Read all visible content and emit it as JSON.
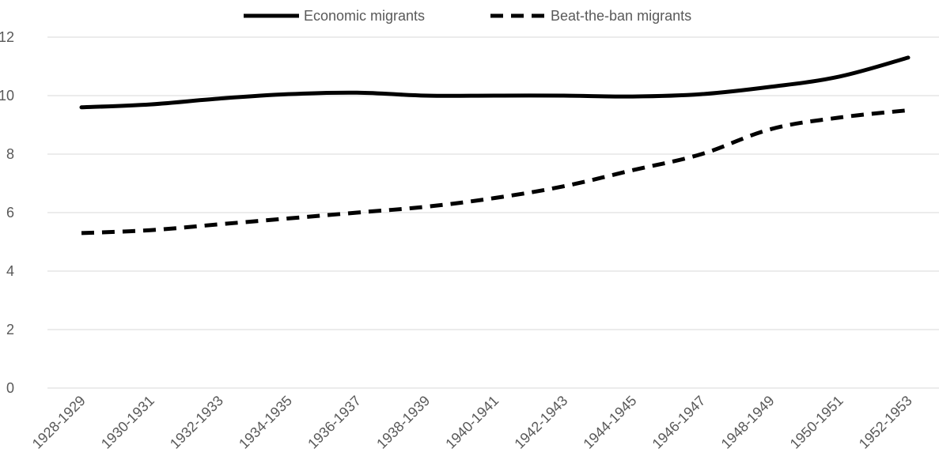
{
  "chart_data": {
    "type": "line",
    "title": "",
    "xlabel": "",
    "ylabel": "",
    "categories": [
      "1928-1929",
      "1930-1931",
      "1932-1933",
      "1934-1935",
      "1936-1937",
      "1938-1939",
      "1940-1941",
      "1942-1943",
      "1944-1945",
      "1946-1947",
      "1948-1949",
      "1950-1951",
      "1952-1953"
    ],
    "ylim": [
      0,
      12
    ],
    "yticks": [
      "0",
      "2",
      "4",
      "6",
      "8",
      "10",
      "12"
    ],
    "grid": true,
    "legend_position": "top",
    "series": [
      {
        "name": "Economic migrants",
        "style": "solid",
        "color": "#000000",
        "values": [
          9.6,
          9.7,
          9.9,
          10.05,
          10.1,
          10.0,
          10.0,
          10.0,
          9.97,
          10.05,
          10.3,
          10.65,
          11.3
        ]
      },
      {
        "name": "Beat-the-ban migrants",
        "style": "dashed",
        "color": "#000000",
        "values": [
          5.3,
          5.4,
          5.6,
          5.8,
          6.0,
          6.2,
          6.5,
          6.9,
          7.45,
          8.0,
          8.85,
          9.25,
          9.5
        ]
      }
    ]
  }
}
